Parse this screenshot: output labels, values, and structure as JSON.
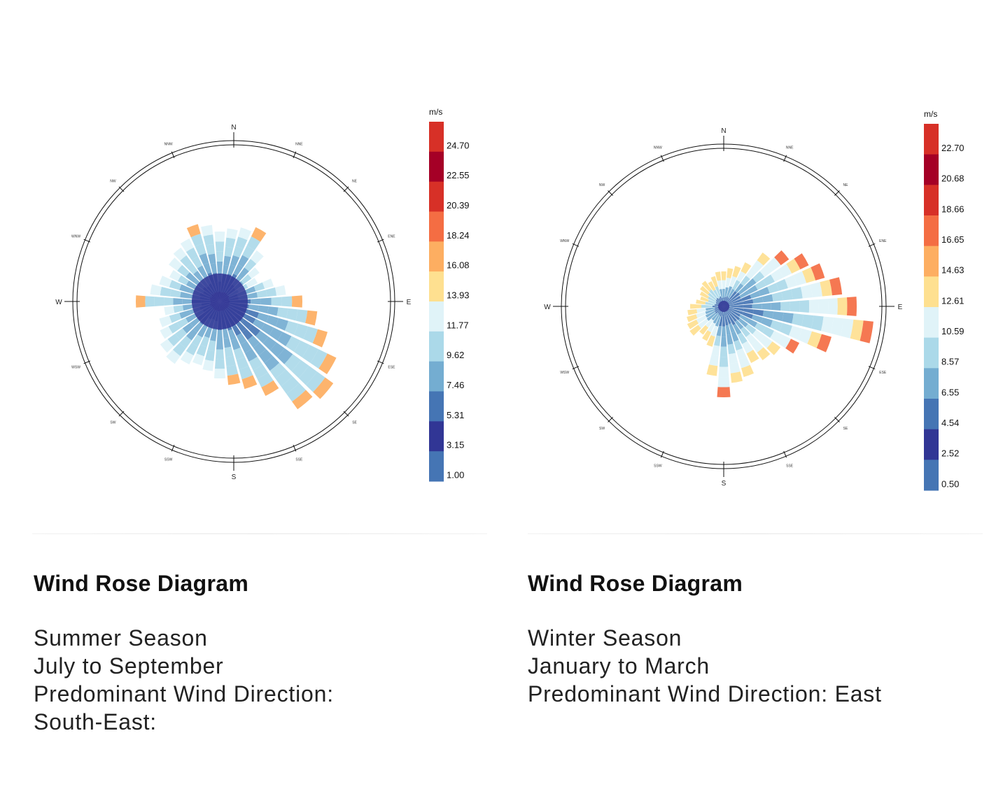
{
  "chart_data": [
    {
      "type": "wind-rose",
      "unit": "m/s",
      "directions": [
        "N",
        "NNE",
        "NE",
        "ENE",
        "E",
        "ESE",
        "SE",
        "SSE",
        "S",
        "SSW",
        "SW",
        "WSW",
        "W",
        "WNW",
        "NW",
        "NNW"
      ],
      "legend_ticks": [
        "24.70",
        "22.55",
        "20.39",
        "18.24",
        "16.08",
        "13.93",
        "11.77",
        "9.62",
        "7.46",
        "5.31",
        "3.15",
        "1.00"
      ],
      "legend_colors": [
        "#d73027",
        "#a50026",
        "#d73027",
        "#f46d43",
        "#fdae61",
        "#fee090",
        "#e0f3f8",
        "#abd9e9",
        "#74add1",
        "#4575b4",
        "#313695",
        "#4575b4"
      ],
      "legend_position": "right",
      "predominant_direction": "South-East",
      "caption": {
        "title": "Wind Rose Diagram",
        "lines": [
          "Summer Season",
          "July to September",
          "Predominant Wind Direction:",
          "South-East:"
        ]
      }
    },
    {
      "type": "wind-rose",
      "unit": "m/s",
      "directions": [
        "N",
        "NNE",
        "NE",
        "ENE",
        "E",
        "ESE",
        "SE",
        "SSE",
        "S",
        "SSW",
        "SW",
        "WSW",
        "W",
        "WNW",
        "NW",
        "NNW"
      ],
      "legend_ticks": [
        "22.70",
        "20.68",
        "18.66",
        "16.65",
        "14.63",
        "12.61",
        "10.59",
        "8.57",
        "6.55",
        "4.54",
        "2.52",
        "0.50"
      ],
      "legend_colors": [
        "#d73027",
        "#a50026",
        "#d73027",
        "#f46d43",
        "#fdae61",
        "#fee090",
        "#e0f3f8",
        "#abd9e9",
        "#74add1",
        "#4575b4",
        "#313695",
        "#4575b4"
      ],
      "legend_position": "right",
      "predominant_direction": "East",
      "caption": {
        "title": "Wind Rose Diagram",
        "lines": [
          "Winter Season",
          "January to March",
          "Predominant Wind Direction: East"
        ]
      }
    }
  ]
}
